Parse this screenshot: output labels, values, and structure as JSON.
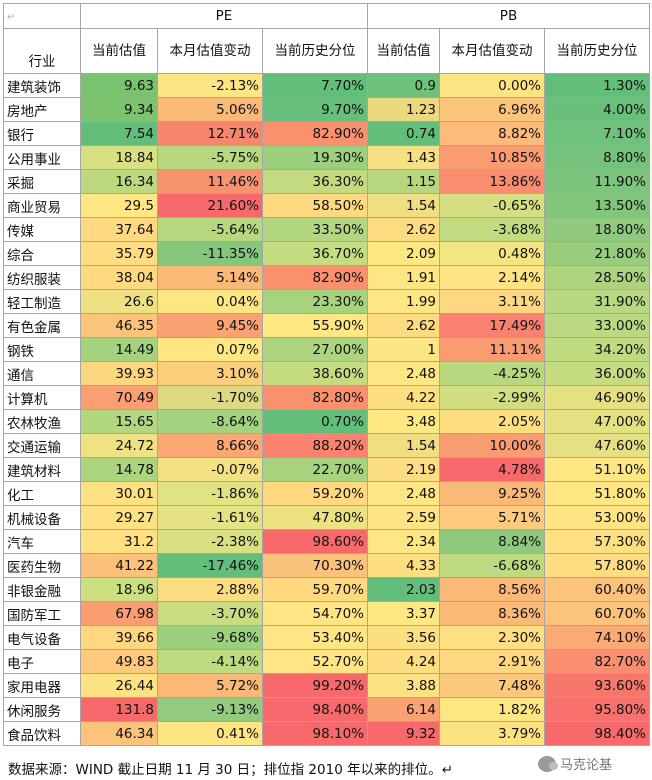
{
  "table": {
    "groups": {
      "corner": "↵",
      "pe": "PE",
      "pb": "PB"
    },
    "headers": [
      "行业",
      "当前估值",
      "本月估值变动",
      "当前历史分位",
      "当前估值",
      "本月估值变动",
      "当前历史分位"
    ],
    "rows": [
      [
        "建筑装饰",
        "9.63",
        "-2.13%",
        "7.70%",
        "0.9",
        "0.00%",
        "1.30%"
      ],
      [
        "房地产",
        "9.34",
        "5.06%",
        "9.70%",
        "1.23",
        "6.96%",
        "4.00%"
      ],
      [
        "银行",
        "7.54",
        "12.71%",
        "82.90%",
        "0.74",
        "8.82%",
        "7.10%"
      ],
      [
        "公用事业",
        "18.84",
        "-5.75%",
        "19.30%",
        "1.43",
        "10.85%",
        "8.80%"
      ],
      [
        "采掘",
        "16.34",
        "11.46%",
        "36.30%",
        "1.15",
        "13.86%",
        "11.90%"
      ],
      [
        "商业贸易",
        "29.5",
        "21.60%",
        "58.50%",
        "1.54",
        "-0.65%",
        "13.50%"
      ],
      [
        "传媒",
        "37.64",
        "-5.64%",
        "33.50%",
        "2.62",
        "-3.68%",
        "18.80%"
      ],
      [
        "综合",
        "35.79",
        "-11.35%",
        "36.70%",
        "2.09",
        "0.48%",
        "21.80%"
      ],
      [
        "纺织服装",
        "38.04",
        "5.14%",
        "82.90%",
        "1.91",
        "2.14%",
        "28.50%"
      ],
      [
        "轻工制造",
        "26.6",
        "0.04%",
        "23.30%",
        "1.99",
        "3.11%",
        "31.90%"
      ],
      [
        "有色金属",
        "46.35",
        "9.45%",
        "55.90%",
        "2.62",
        "17.49%",
        "33.00%"
      ],
      [
        "钢铁",
        "14.49",
        "0.07%",
        "27.00%",
        "1",
        "11.11%",
        "34.20%"
      ],
      [
        "通信",
        "39.93",
        "3.10%",
        "38.60%",
        "2.48",
        "-4.25%",
        "36.00%"
      ],
      [
        "计算机",
        "70.49",
        "-1.70%",
        "82.80%",
        "4.22",
        "-2.99%",
        "46.90%"
      ],
      [
        "农林牧渔",
        "15.65",
        "-8.64%",
        "0.70%",
        "3.48",
        "2.05%",
        "47.00%"
      ],
      [
        "交通运输",
        "24.72",
        "8.66%",
        "88.20%",
        "1.54",
        "10.00%",
        "47.60%"
      ],
      [
        "建筑材料",
        "14.78",
        "-0.07%",
        "22.70%",
        "2.19",
        "4.78%",
        "51.10%"
      ],
      [
        "化工",
        "30.01",
        "-1.86%",
        "59.20%",
        "2.48",
        "9.25%",
        "51.80%"
      ],
      [
        "机械设备",
        "29.27",
        "-1.61%",
        "47.80%",
        "2.59",
        "5.71%",
        "53.00%"
      ],
      [
        "汽车",
        "31.2",
        "-2.38%",
        "98.60%",
        "2.34",
        "8.84%",
        "57.30%"
      ],
      [
        "医药生物",
        "41.22",
        "-17.46%",
        "70.30%",
        "4.33",
        "-6.68%",
        "57.80%"
      ],
      [
        "非银金融",
        "18.96",
        "2.88%",
        "59.70%",
        "2.03",
        "8.56%",
        "60.40%"
      ],
      [
        "国防军工",
        "67.98",
        "-3.70%",
        "54.70%",
        "3.37",
        "8.36%",
        "60.70%"
      ],
      [
        "电气设备",
        "39.66",
        "-9.68%",
        "53.40%",
        "3.56",
        "2.30%",
        "74.10%"
      ],
      [
        "电子",
        "49.83",
        "-4.14%",
        "52.70%",
        "4.24",
        "2.91%",
        "82.70%"
      ],
      [
        "家用电器",
        "26.44",
        "5.72%",
        "99.20%",
        "3.88",
        "7.48%",
        "93.60%"
      ],
      [
        "休闲服务",
        "131.8",
        "-9.13%",
        "98.40%",
        "6.14",
        "1.82%",
        "95.80%"
      ],
      [
        "食品饮料",
        "46.34",
        "0.41%",
        "98.10%",
        "9.32",
        "3.79%",
        "98.40%"
      ]
    ],
    "colors": [
      [
        null,
        "#79c26f",
        "#fbe683",
        "#63be7b",
        "#6fc07a",
        "#fde482",
        "#63be7b"
      ],
      [
        null,
        "#7ec470",
        "#fbb978",
        "#66bf7b",
        "#ecd87f",
        "#fbc57b",
        "#6ac07b"
      ],
      [
        null,
        "#63be7b",
        "#f8856e",
        "#f9916f",
        "#63be7b",
        "#fcbb7a",
        "#6fc17b"
      ],
      [
        null,
        "#d7e181",
        "#b7d87f",
        "#9dd07e",
        "#f6e083",
        "#fa9c72",
        "#74c27c"
      ],
      [
        null,
        "#bcd980",
        "#f8936f",
        "#c3da80",
        "#b6d67f",
        "#f98d70",
        "#7dc47c"
      ],
      [
        null,
        "#ffe884",
        "#f8696b",
        "#ffd980",
        "#f0de82",
        "#d4df81",
        "#82c67c"
      ],
      [
        null,
        "#fed981",
        "#b7d87f",
        "#b3d680",
        "#fddb80",
        "#c1db80",
        "#90ca7e"
      ],
      [
        null,
        "#fedd82",
        "#84c67c",
        "#c5dc80",
        "#fde783",
        "#f3e582",
        "#98cd7e"
      ],
      [
        null,
        "#fed980",
        "#fbb978",
        "#f9916f",
        "#fde683",
        "#fee383",
        "#aed37f"
      ],
      [
        null,
        "#eee183",
        "#fee683",
        "#a7d37f",
        "#fde683",
        "#fdd881",
        "#b7d880"
      ],
      [
        null,
        "#fcc47b",
        "#f9a372",
        "#ffe884",
        "#fddb80",
        "#f98170",
        "#bad980"
      ],
      [
        null,
        "#a4d27f",
        "#fee683",
        "#adD57f",
        "#fbe683",
        "#fa9c72",
        "#c0da80"
      ],
      [
        null,
        "#fdd780",
        "#fccf7d",
        "#c5dc80",
        "#fde683",
        "#b7d87f",
        "#c5dc80"
      ],
      [
        null,
        "#fa9e73",
        "#ddd881",
        "#f9916f",
        "#fddf82",
        "#d1dd81",
        "#e5e182"
      ],
      [
        null,
        "#b3d680",
        "#a4d27f",
        "#63be7b",
        "#fde883",
        "#fddf82",
        "#e5e182"
      ],
      [
        null,
        "#f0e183",
        "#faa773",
        "#f98370",
        "#f0de82",
        "#fa9c72",
        "#e5e182"
      ],
      [
        null,
        "#acd47f",
        "#f4e183",
        "#a7d37f",
        "#fddd82",
        "#f8696b",
        "#ffe884"
      ],
      [
        null,
        "#fde082",
        "#e1e282",
        "#ffd880",
        "#fde683",
        "#fbb978",
        "#ffe884"
      ],
      [
        null,
        "#fee183",
        "#e5e283",
        "#ede182",
        "#fde383",
        "#fdcb7e",
        "#fee482"
      ],
      [
        null,
        "#fedf82",
        "#d8e082",
        "#f8696b",
        "#fde683",
        "#8ec97d",
        "#fedf82"
      ],
      [
        null,
        "#fcc17b",
        "#63be7b",
        "#fbc27b",
        "#fddf82",
        "#bfd980",
        "#fedc81"
      ],
      [
        null,
        "#ccdf81",
        "#fddd82",
        "#ffd880",
        "#63be7b",
        "#fbb978",
        "#fbc37b"
      ],
      [
        null,
        "#fa9d73",
        "#c9dc80",
        "#ffe583",
        "#fde883",
        "#fbb978",
        "#fbc37b"
      ],
      [
        null,
        "#fed780",
        "#9dd07e",
        "#ffe583",
        "#fdde82",
        "#fedf82",
        "#fcaa74"
      ],
      [
        null,
        "#fdc97c",
        "#c0da80",
        "#ffe583",
        "#fdde82",
        "#fdd881",
        "#f98f70"
      ],
      [
        null,
        "#fde282",
        "#fbb978",
        "#f8696b",
        "#fde283",
        "#fbc87c",
        "#f8776d"
      ],
      [
        null,
        "#f8696b",
        "#92cb7e",
        "#f8696b",
        "#f9a372",
        "#fde783",
        "#f8716c"
      ],
      [
        null,
        "#fcc47b",
        "#fee583",
        "#f8696b",
        "#f8696b",
        "#fde282",
        "#f8696b"
      ]
    ]
  },
  "footer": "数据来源：WIND   截止日期 11 月 30 日；排位指 2010 年以来的排位。↵",
  "watermark": "马克论基"
}
